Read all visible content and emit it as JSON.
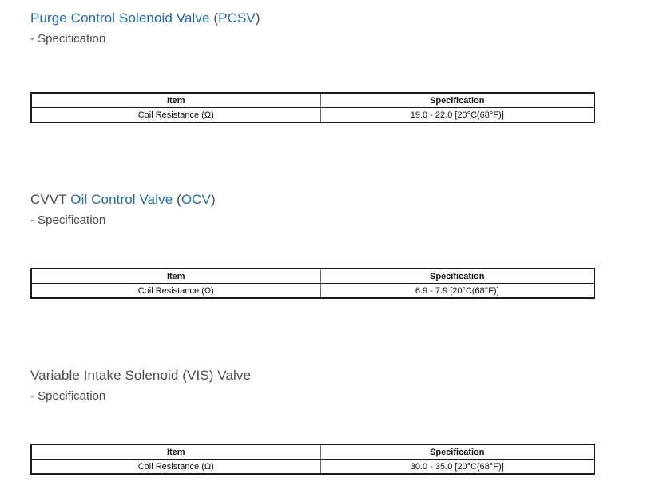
{
  "colors": {
    "link_blue": "#1c6ab8",
    "heading_gray": "#4c4c4c",
    "table_text": "#111111",
    "table_border": "#1a1a1a",
    "page_background": "#ffffff"
  },
  "sections": [
    {
      "id": "pcsv",
      "title_parts": [
        {
          "text": "Purge Control Solenoid Valve",
          "link": true
        },
        {
          "text": " (",
          "link": false
        },
        {
          "text": "PCSV",
          "link": true
        },
        {
          "text": ")",
          "link": false
        }
      ],
      "subtitle": "- Specification",
      "table": {
        "headers": [
          "Item",
          "Specification"
        ],
        "rows": [
          [
            "Coil Resistance (Ω)",
            "19.0 - 22.0 [20°C(68°F)]"
          ]
        ]
      }
    },
    {
      "id": "ocv",
      "title_parts": [
        {
          "text": "CVVT ",
          "link": false
        },
        {
          "text": "Oil Control Valve",
          "link": true
        },
        {
          "text": " (",
          "link": false
        },
        {
          "text": "OCV",
          "link": true
        },
        {
          "text": ")",
          "link": false
        }
      ],
      "subtitle": "- Specification",
      "table": {
        "headers": [
          "Item",
          "Specification"
        ],
        "rows": [
          [
            "Coil Resistance (Ω)",
            "6.9 - 7.9 [20°C(68°F)]"
          ]
        ]
      }
    },
    {
      "id": "vis",
      "title_parts": [
        {
          "text": "Variable Intake Solenoid (VIS) Valve",
          "link": false
        }
      ],
      "subtitle": "- Specification",
      "table": {
        "headers": [
          "Item",
          "Specification"
        ],
        "rows": [
          [
            "Coil Resistance (Ω)",
            "30.0 - 35.0 [20°C(68°F)]"
          ]
        ]
      }
    }
  ]
}
